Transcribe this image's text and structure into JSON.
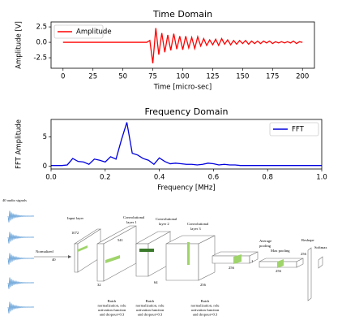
{
  "chart_data": [
    {
      "type": "line",
      "title": "Time Domain",
      "xlabel": "Time [micro-sec]",
      "ylabel": "Amplitude [V]",
      "x": [
        0,
        65,
        70,
        72.5,
        75,
        77.5,
        80,
        82.5,
        85,
        87.5,
        90,
        92.5,
        95,
        97.5,
        100,
        102.5,
        105,
        107.5,
        110,
        112.5,
        115,
        117.5,
        120,
        122.5,
        125,
        127.5,
        130,
        132.5,
        135,
        137.5,
        140,
        142.5,
        145,
        147.5,
        150,
        152.5,
        155,
        157.5,
        160,
        162.5,
        165,
        167.5,
        170,
        172.5,
        175,
        177.5,
        180,
        182.5,
        185,
        187.5,
        190,
        192.5,
        195,
        197.5,
        200
      ],
      "series": [
        {
          "name": "Amplitude",
          "color": "#ff0000",
          "values": [
            0,
            0,
            0,
            0.3,
            -3.4,
            2.3,
            -2.0,
            1.5,
            -1.6,
            1.2,
            -1.3,
            1.4,
            -1.1,
            1.0,
            -1.2,
            1.0,
            -0.9,
            0.8,
            -1.0,
            0.9,
            -0.6,
            0.6,
            -0.5,
            0.4,
            -0.4,
            0.5,
            -0.5,
            0.6,
            -0.3,
            0.4,
            -0.4,
            0.3,
            -0.3,
            0.3,
            -0.2,
            0.3,
            -0.3,
            0.2,
            -0.2,
            0.2,
            -0.2,
            0.2,
            -0.1,
            0.2,
            -0.2,
            0.1,
            -0.1,
            0.1,
            -0.1,
            0.1,
            -0.1,
            0.2,
            -0.2,
            0.1,
            0
          ]
        }
      ],
      "xlim": [
        -10,
        210
      ],
      "xticks": [
        0,
        25,
        50,
        75,
        100,
        125,
        150,
        175,
        200
      ],
      "ylim": [
        -4.2,
        3.3
      ],
      "yticks": [
        -2.5,
        {
          "value": 0,
          "label": "0.0"
        },
        2.5
      ],
      "legend": "upper left"
    },
    {
      "type": "line",
      "title": "Frequency Domain",
      "xlabel": "Frequency [MHz]",
      "ylabel": "FFT Amplitude",
      "x": [
        0,
        0.02,
        0.04,
        0.06,
        0.08,
        0.1,
        0.12,
        0.14,
        0.16,
        0.18,
        0.2,
        0.22,
        0.24,
        0.26,
        0.28,
        0.3,
        0.32,
        0.34,
        0.36,
        0.38,
        0.4,
        0.42,
        0.44,
        0.46,
        0.48,
        0.5,
        0.52,
        0.54,
        0.56,
        0.58,
        0.6,
        0.62,
        0.64,
        0.66,
        0.68,
        0.7,
        0.72,
        0.74,
        0.76,
        0.78,
        0.8,
        0.82,
        0.84,
        0.86,
        0.88,
        0.9,
        0.92,
        0.94,
        0.96,
        0.98,
        1.0
      ],
      "series": [
        {
          "name": "FFT",
          "color": "#0000dd",
          "values": [
            0.1,
            0.1,
            0.1,
            0.2,
            1.3,
            0.8,
            0.7,
            0.3,
            1.2,
            1.0,
            0.7,
            1.6,
            1.2,
            4.5,
            7.5,
            2.2,
            1.9,
            1.3,
            1.0,
            0.3,
            1.4,
            0.8,
            0.4,
            0.5,
            0.4,
            0.3,
            0.3,
            0.2,
            0.3,
            0.5,
            0.4,
            0.2,
            0.3,
            0.2,
            0.2,
            0.1,
            0.1,
            0.1,
            0.1,
            0.1,
            0.1,
            0.1,
            0.1,
            0.1,
            0.1,
            0.1,
            0.1,
            0.1,
            0.1,
            0.1,
            0.1
          ]
        }
      ],
      "xlim": [
        0,
        1
      ],
      "xticks": [
        {
          "value": 0,
          "label": "0.0"
        },
        0.2,
        0.4,
        0.6,
        0.8,
        {
          "value": 1,
          "label": "1.0"
        }
      ],
      "ylim": [
        -0.5,
        8
      ],
      "yticks": [
        0,
        5
      ],
      "legend": "upper right"
    }
  ],
  "diagram": {
    "caption": "40 audio signals",
    "input": {
      "label": "Input layer",
      "size": "1072",
      "arrow": "Normalized",
      "count": "40"
    },
    "conv1": {
      "label": [
        "Convolutional",
        "layer 1"
      ],
      "size": "541",
      "filters": "32"
    },
    "conv2": {
      "label": [
        "Convolutional",
        "layer 2"
      ],
      "filters": "64"
    },
    "conv3": {
      "label": [
        "Convolutional",
        "layer 3"
      ],
      "filters": "256"
    },
    "avgpool": {
      "label": [
        "Average",
        "pooling"
      ],
      "filters": "256",
      "size": "1"
    },
    "maxpool": {
      "label": "Max pooling",
      "filters": "256"
    },
    "reshape": {
      "label": "Reshape",
      "filters": "256"
    },
    "softmax": {
      "label": "Softmax"
    },
    "notes": [
      [
        "Batch",
        "normalization, relu",
        "activation function",
        "and dropout=0.3"
      ],
      [
        "Batch",
        "normalization, relu",
        "activation function",
        "and dropout=0.3"
      ],
      [
        "Batch",
        "normalization, relu",
        "activation function",
        "and dropout=0.3"
      ]
    ]
  }
}
